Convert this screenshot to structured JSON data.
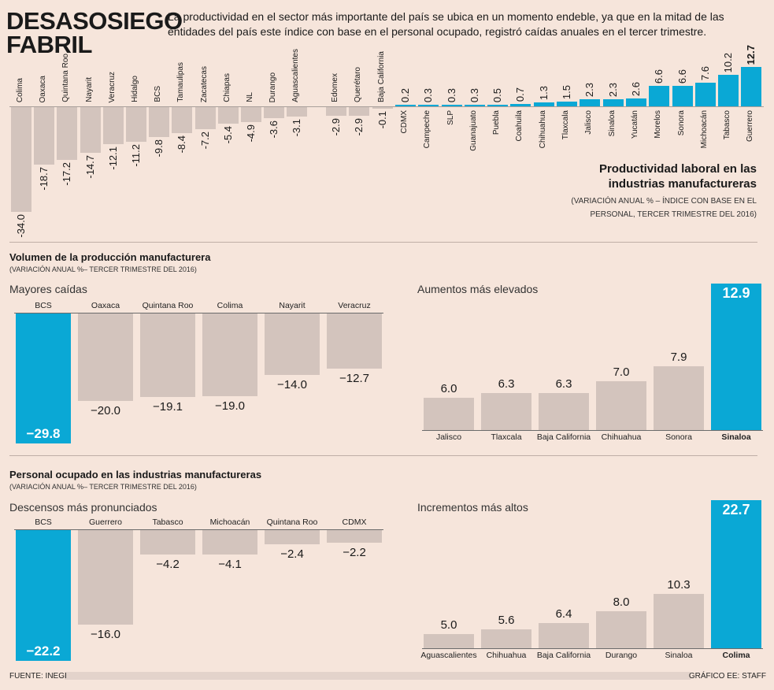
{
  "header": {
    "title": "DESASOSIEGO FABRIL",
    "intro": "La productividad en el sector más importante del país se ubica en un momento endeble, ya que en la mitad de las entidades del país este índice con base en el personal ocupado, registró caídas anuales en el tercer trimestre."
  },
  "colors": {
    "background": "#f6e5db",
    "negative_bar": "#d3c4bd",
    "positive_bar": "#0aa8d5",
    "highlight": "#0aa8d5"
  },
  "chart_data": [
    {
      "type": "bar",
      "title": "Productividad laboral en las industrias manufactureras",
      "subtitle": "(VARIACIÓN ANUAL % – ÍNDICE CON BASE EN EL PERSONAL, TERCER TRIMESTRE DEL 2016)",
      "categories": [
        "Colima",
        "Oaxaca",
        "Quintana Roo",
        "Nayarit",
        "Veracruz",
        "Hidalgo",
        "BCS",
        "Tamaulipas",
        "Zacatecas",
        "Chiapas",
        "NL",
        "Durango",
        "Aguascalientes",
        "Edomex",
        "Querétaro",
        "Baja California",
        "CDMX",
        "Campeche",
        "SLP",
        "Guanajuato",
        "Puebla",
        "Coahuila",
        "Chihuahua",
        "Tlaxcala",
        "Jalisco",
        "Sinaloa",
        "Yucatán",
        "Morelos",
        "Sonora",
        "Michoacán",
        "Tabasco",
        "Guerrero"
      ],
      "values": [
        -34.0,
        -18.7,
        -17.2,
        -14.7,
        -12.1,
        -11.2,
        -9.8,
        -8.4,
        -7.2,
        -5.4,
        -4.9,
        -3.6,
        -3.1,
        -2.9,
        -2.9,
        -0.1,
        0.2,
        0.3,
        0.3,
        0.3,
        0.5,
        0.7,
        1.3,
        1.5,
        2.3,
        2.3,
        2.6,
        6.6,
        6.6,
        7.6,
        10.2,
        12.7
      ],
      "labels": [
        "-34.0",
        "-18.7",
        "-17.2",
        "-14.7",
        "-12.1",
        "-11.2",
        "-9.8",
        "-8.4",
        "-7.2",
        "-5.4",
        "-4.9",
        "-3.6",
        "-3.1",
        "-2.9",
        "-2.9",
        "-0.1",
        "0.2",
        "0.3",
        "0.3",
        "0.3",
        "0.5",
        "0.7",
        "1.3",
        "1.5",
        "2.3",
        "2.3",
        "2.6",
        "6.6",
        "6.6",
        "7.6",
        "10.2",
        "12.7"
      ],
      "legend": "none",
      "grid": false
    },
    {
      "type": "bar",
      "section": "Volumen de la producción manufacturera",
      "section_sub": "(VARIACIÓN ANUAL %– TERCER TRIMESTRE DEL 2016)",
      "title": "Mayores caídas",
      "categories": [
        "BCS",
        "Oaxaca",
        "Quintana Roo",
        "Colima",
        "Nayarit",
        "Veracruz"
      ],
      "values": [
        -29.8,
        -20.0,
        -19.1,
        -19.0,
        -14.0,
        -12.7
      ],
      "labels": [
        "−29.8",
        "−20.0",
        "−19.1",
        "−19.0",
        "−14.0",
        "−12.7"
      ],
      "highlight": "BCS"
    },
    {
      "type": "bar",
      "title": "Aumentos más elevados",
      "categories": [
        "Jalisco",
        "Tlaxcala",
        "Baja California",
        "Chihuahua",
        "Sonora",
        "Sinaloa"
      ],
      "values": [
        6.0,
        6.3,
        6.3,
        7.0,
        7.9,
        12.9
      ],
      "labels": [
        "6.0",
        "6.3",
        "6.3",
        "7.0",
        "7.9",
        "12.9"
      ],
      "highlight": "Sinaloa"
    },
    {
      "type": "bar",
      "section": "Personal ocupado en las industrias manufactureras",
      "section_sub": "(VARIACIÓN ANUAL %– TERCER TRIMESTRE DEL 2016)",
      "title": "Descensos más pronunciados",
      "categories": [
        "BCS",
        "Guerrero",
        "Tabasco",
        "Michoacán",
        "Quintana Roo",
        "CDMX"
      ],
      "values": [
        -22.2,
        -16.0,
        -4.2,
        -4.1,
        -2.4,
        -2.2
      ],
      "labels": [
        "−22.2",
        "−16.0",
        "−4.2",
        "−4.1",
        "−2.4",
        "−2.2"
      ],
      "highlight": "BCS"
    },
    {
      "type": "bar",
      "title": "Incrementos más altos",
      "categories": [
        "Aguascalientes",
        "Chihuahua",
        "Baja California",
        "Durango",
        "Sinaloa",
        "Colima"
      ],
      "values": [
        5.0,
        5.6,
        6.4,
        8.0,
        10.3,
        22.7
      ],
      "labels": [
        "5.0",
        "5.6",
        "6.4",
        "8.0",
        "10.3",
        "22.7"
      ],
      "highlight": "Colima"
    }
  ],
  "footer": {
    "source": "FUENTE: INEGI",
    "credit": "GRÁFICO EE: STAFF"
  }
}
